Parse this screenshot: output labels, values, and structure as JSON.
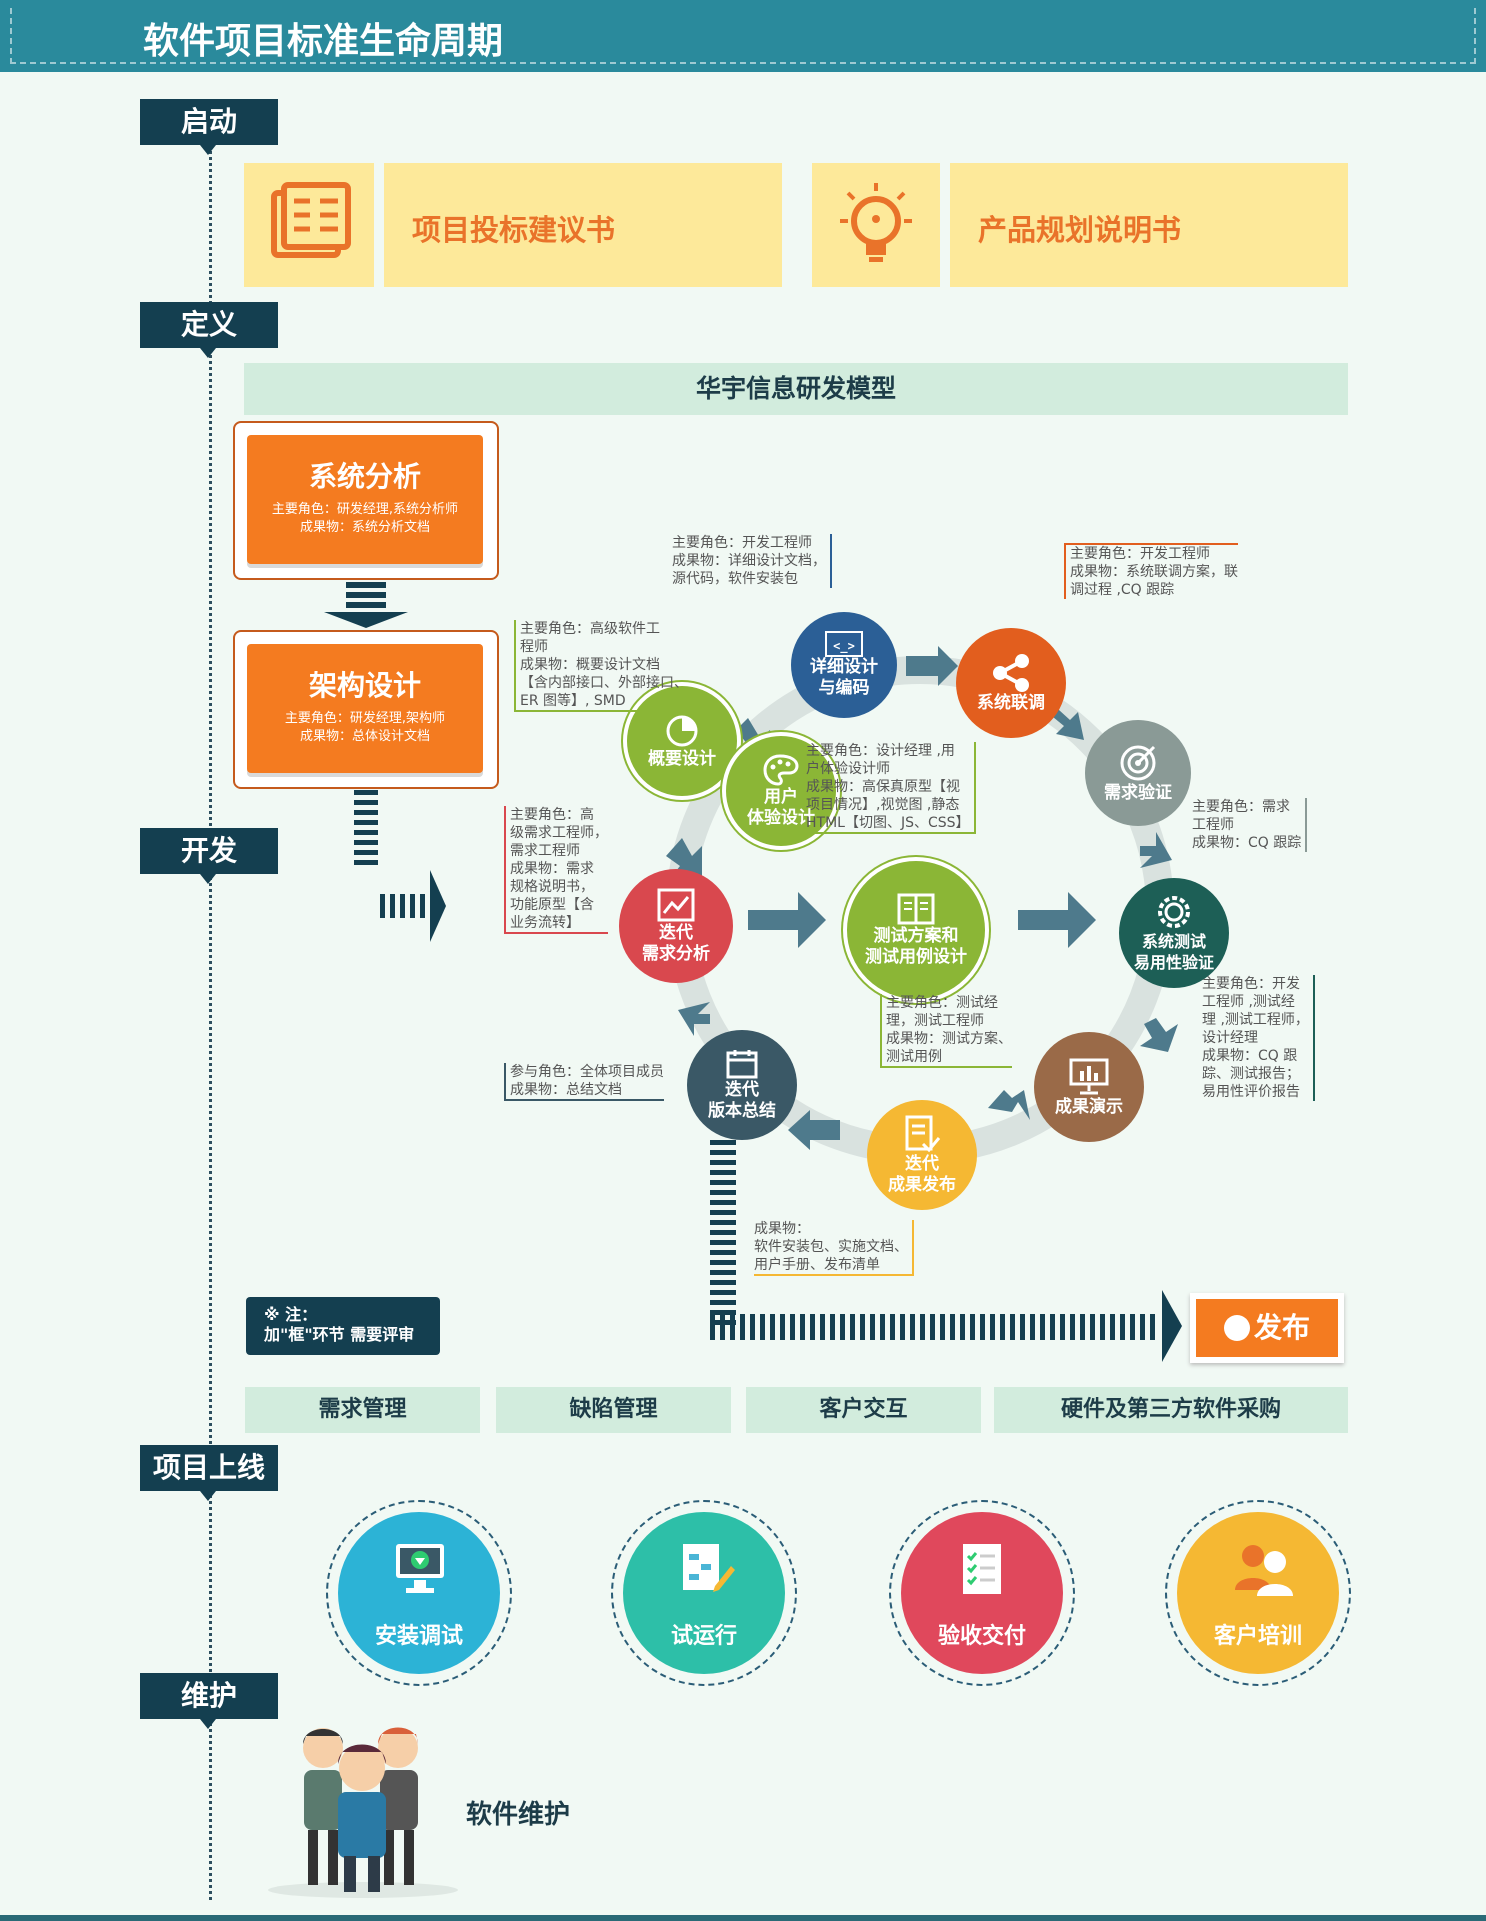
{
  "title": "软件项目标准生命周期",
  "stages": [
    "启动",
    "定义",
    "开发",
    "项目上线",
    "维护"
  ],
  "start_items": [
    "项目投标建议书",
    "产品规划说明书"
  ],
  "model_title": "华宇信息研发模型",
  "system_analysis": {
    "title": "系统分析",
    "roles": "主要角色：研发经理,系统分析师",
    "output": "成果物：系统分析文档"
  },
  "arch_design": {
    "title": "架构设计",
    "roles": "主要角色：研发经理,架构师",
    "output": "成果物：总体设计文档"
  },
  "cycle": {
    "detail_design": "详细设计\n与编码",
    "integration": "系统联调",
    "req_verify": "需求验证",
    "sys_test": "系统测试\n易用性验证",
    "demo": "成果演示",
    "release": "迭代\n成果发布",
    "summary": "迭代\n版本总结",
    "req_analysis": "迭代\n需求分析",
    "outline_design": "概要设计",
    "ux_design": "用户\n体验设计",
    "test_plan": "测试方案和\n测试用例设计"
  },
  "annotations": {
    "detail_design": "主要角色：开发工程师\n成果物：详细设计文档，\n源代码，软件安装包",
    "integration": "主要角色：开发工程师\n成果物：系统联调方案，联\n调过程 ,CQ 跟踪",
    "outline_design": "主要角色：高级软件工\n程师\n成果物：概要设计文档\n【含内部接口、外部接口、\nER 图等】, SMD",
    "ux_design": "主要角色：设计经理 ,用\n户体验设计师\n成果物：高保真原型【视\n项目情况】,视觉图 ,静态\nHTML【切图、JS、CSS】",
    "req_verify": "主要角色：需求\n工程师\n成果物：CQ 跟踪",
    "req_analysis": "主要角色：高\n级需求工程师，\n需求工程师\n成果物：需求\n规格说明书，\n功能原型【含\n业务流转】",
    "test_plan": "主要角色：测试经\n理，测试工程师\n成果物：测试方案、\n测试用例",
    "sys_test": "主要角色：开发\n工程师 ,测试经\n理 ,测试工程师，\n设计经理\n成果物：CQ 跟\n踪、测试报告；\n易用性评价报告",
    "summary": "参与角色：全体项目成员\n成果物：总结文档",
    "release": "成果物：\n软件安装包、实施文档、\n用户手册、发布清单"
  },
  "note": "※ 注：\n加\"框\"环节 需要评审",
  "publish": "发布",
  "footer_bars": [
    "需求管理",
    "缺陷管理",
    "客户交互",
    "硬件及第三方软件采购"
  ],
  "launch_items": [
    "安装调试",
    "试运行",
    "验收交付",
    "客户培训"
  ],
  "maintenance": "软件维护",
  "colors": {
    "header": "#2a8a9c",
    "stage": "#143f50",
    "orange": "#f47b20"
  }
}
